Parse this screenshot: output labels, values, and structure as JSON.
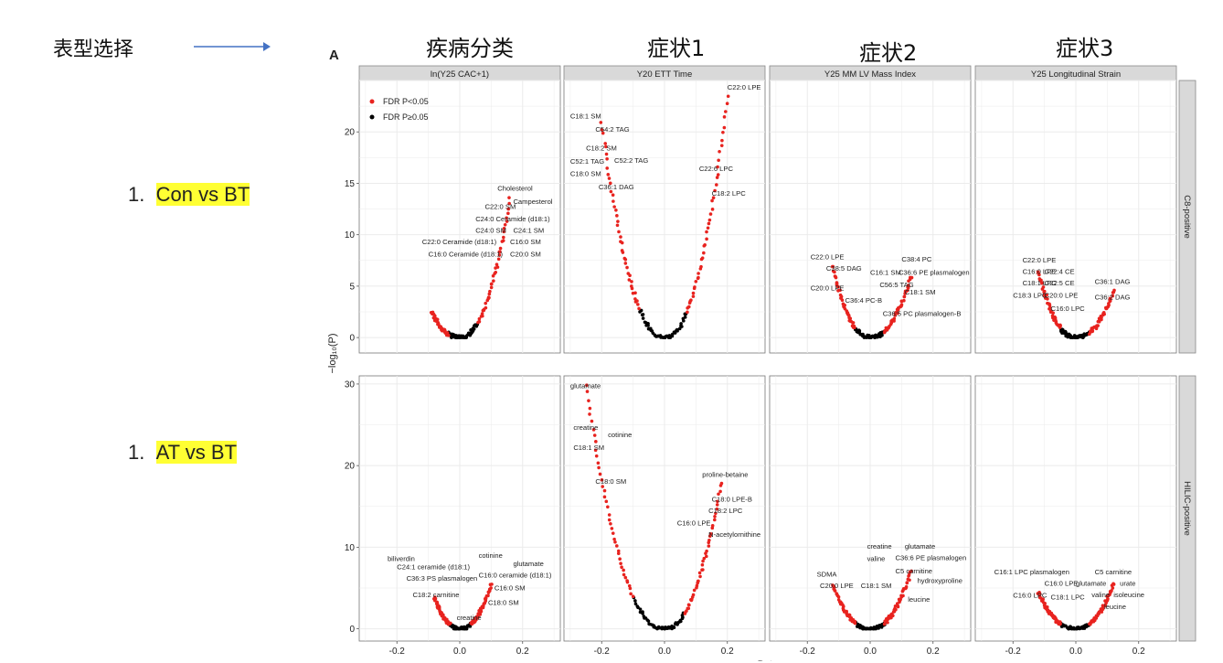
{
  "annotations": {
    "phenotype_selection": "表型选择",
    "rows": [
      {
        "num": "1.",
        "label": "Con vs BT"
      },
      {
        "num": "1.",
        "label": "AT vs BT"
      }
    ],
    "column_headers": [
      "疾病分类",
      "症状1",
      "症状2",
      "症状3"
    ]
  },
  "chart_data": {
    "type": "scatter",
    "panel_letter": "A",
    "xlabel": "Beta",
    "ylabel": "−log₁₀(P)",
    "x_ticks": [
      "-0.2",
      "0.0",
      "0.2"
    ],
    "xlim": [
      -0.32,
      0.32
    ],
    "facet_columns": [
      "ln(Y25 CAC+1)",
      "Y20 ETT Time",
      "Y25 MM LV Mass Index",
      "Y25 Longitudinal Strain"
    ],
    "facet_rows": [
      "C8-positive",
      "HILIC-positive"
    ],
    "row_ylims": [
      [
        -1.5,
        25
      ],
      [
        -1.5,
        31
      ]
    ],
    "row_yticks": [
      [
        "0",
        "5",
        "10",
        "15",
        "20"
      ],
      [
        "0",
        "10",
        "20",
        "30"
      ]
    ],
    "legend": [
      {
        "label": "FDR P<0.05",
        "color": "#e8231f"
      },
      {
        "label": "FDR P≥0.05",
        "color": "#000000"
      }
    ],
    "colors": {
      "sig": "#e8231f",
      "ns": "#000000",
      "strip": "#d9d9d9",
      "grid": "#ebebeb"
    },
    "panels": [
      {
        "row": 0,
        "col": 0,
        "curve": {
          "left_x": -0.09,
          "right_x": 0.16,
          "left_max": 2.5,
          "right_max": 13.5
        },
        "labels": [
          {
            "text": "Cholesterol",
            "x": 0.12,
            "y": 14.3
          },
          {
            "text": "Campesterol",
            "x": 0.17,
            "y": 13.0
          },
          {
            "text": "C22:0 SM",
            "x": 0.08,
            "y": 12.5
          },
          {
            "text": "C24:0 Ceramide (d18:1)",
            "x": 0.05,
            "y": 11.3
          },
          {
            "text": "C24:0 SM",
            "x": 0.05,
            "y": 10.2
          },
          {
            "text": "C24:1 SM",
            "x": 0.17,
            "y": 10.2
          },
          {
            "text": "C22:0 Ceramide (d18:1)",
            "x": -0.12,
            "y": 9.1
          },
          {
            "text": "C16:0 SM",
            "x": 0.16,
            "y": 9.1
          },
          {
            "text": "C16:0 Ceramide (d18:1)",
            "x": -0.1,
            "y": 7.9
          },
          {
            "text": "C20:0 SM",
            "x": 0.16,
            "y": 7.9
          }
        ]
      },
      {
        "row": 0,
        "col": 1,
        "curve": {
          "left_x": -0.2,
          "right_x": 0.2,
          "left_max": 21,
          "right_max": 23.5
        },
        "labels": [
          {
            "text": "C22:0 LPE",
            "x": 0.2,
            "y": 24.1
          },
          {
            "text": "C18:1 SM",
            "x": -0.3,
            "y": 21.3
          },
          {
            "text": "C54:2 TAG",
            "x": -0.22,
            "y": 20.0
          },
          {
            "text": "C18:2 SM",
            "x": -0.25,
            "y": 18.2
          },
          {
            "text": "C52:1 TAG",
            "x": -0.3,
            "y": 16.9
          },
          {
            "text": "C52:2 TAG",
            "x": -0.16,
            "y": 17.0
          },
          {
            "text": "C18:0 SM",
            "x": -0.3,
            "y": 15.7
          },
          {
            "text": "C22:6 LPC",
            "x": 0.11,
            "y": 16.2
          },
          {
            "text": "C36:1 DAG",
            "x": -0.21,
            "y": 14.4
          },
          {
            "text": "C18:2 LPC",
            "x": 0.15,
            "y": 13.8
          }
        ]
      },
      {
        "row": 0,
        "col": 2,
        "curve": {
          "left_x": -0.12,
          "right_x": 0.13,
          "left_max": 7,
          "right_max": 6
        },
        "labels": [
          {
            "text": "C22:0 LPE",
            "x": -0.19,
            "y": 7.6
          },
          {
            "text": "C38:4 PC",
            "x": 0.1,
            "y": 7.4
          },
          {
            "text": "C38:5 DAG",
            "x": -0.14,
            "y": 6.5
          },
          {
            "text": "C16:1 SM",
            "x": 0.0,
            "y": 6.1
          },
          {
            "text": "C36:6 PE plasmalogen",
            "x": 0.09,
            "y": 6.1
          },
          {
            "text": "C56:5 TAG",
            "x": 0.03,
            "y": 4.9
          },
          {
            "text": "C20:0 LPE",
            "x": -0.19,
            "y": 4.6
          },
          {
            "text": "C18:1 SM",
            "x": 0.11,
            "y": 4.2
          },
          {
            "text": "C36:4 PC-B",
            "x": -0.08,
            "y": 3.4
          },
          {
            "text": "C36:5 PC plasmalogen-B",
            "x": 0.04,
            "y": 2.1
          }
        ]
      },
      {
        "row": 0,
        "col": 3,
        "curve": {
          "left_x": -0.12,
          "right_x": 0.12,
          "left_max": 6.5,
          "right_max": 4.5
        },
        "labels": [
          {
            "text": "C22:0 LPE",
            "x": -0.17,
            "y": 7.3
          },
          {
            "text": "C16:0 LPE",
            "x": -0.17,
            "y": 6.2
          },
          {
            "text": "C22:4 CE",
            "x": -0.1,
            "y": 6.2
          },
          {
            "text": "C18:1 LPC",
            "x": -0.17,
            "y": 5.1
          },
          {
            "text": "C22:5 CE",
            "x": -0.1,
            "y": 5.1
          },
          {
            "text": "C36:1 DAG",
            "x": 0.06,
            "y": 5.2
          },
          {
            "text": "C18:3 LPC",
            "x": -0.2,
            "y": 3.9
          },
          {
            "text": "C20:0 LPE",
            "x": -0.1,
            "y": 3.9
          },
          {
            "text": "C36:2 DAG",
            "x": 0.06,
            "y": 3.7
          },
          {
            "text": "C16:0 LPC",
            "x": -0.08,
            "y": 2.6
          }
        ]
      },
      {
        "row": 1,
        "col": 0,
        "curve": {
          "left_x": -0.08,
          "right_x": 0.1,
          "left_max": 3.8,
          "right_max": 5.5
        },
        "labels": [
          {
            "text": "biliverdin",
            "x": -0.23,
            "y": 8.3
          },
          {
            "text": "cotinine",
            "x": 0.06,
            "y": 8.7
          },
          {
            "text": "C24:1 ceramide (d18:1)",
            "x": -0.2,
            "y": 7.3
          },
          {
            "text": "glutamate",
            "x": 0.17,
            "y": 7.7
          },
          {
            "text": "C16:0 ceramide (d18:1)",
            "x": 0.06,
            "y": 6.3
          },
          {
            "text": "C36:3 PS plasmalogen",
            "x": -0.17,
            "y": 5.9
          },
          {
            "text": "C16:0 SM",
            "x": 0.11,
            "y": 4.7
          },
          {
            "text": "C18:2 carnitine",
            "x": -0.15,
            "y": 3.9
          },
          {
            "text": "C18:0 SM",
            "x": 0.09,
            "y": 2.9
          },
          {
            "text": "creatine",
            "x": -0.01,
            "y": 1.1
          }
        ]
      },
      {
        "row": 1,
        "col": 1,
        "curve": {
          "left_x": -0.25,
          "right_x": 0.18,
          "left_max": 30,
          "right_max": 18
        },
        "labels": [
          {
            "text": "glutamate",
            "x": -0.3,
            "y": 29.5
          },
          {
            "text": "creatine",
            "x": -0.29,
            "y": 24.4
          },
          {
            "text": "cotinine",
            "x": -0.18,
            "y": 23.5
          },
          {
            "text": "C18:1 SM",
            "x": -0.29,
            "y": 21.9
          },
          {
            "text": "C18:0 SM",
            "x": -0.22,
            "y": 17.8
          },
          {
            "text": "proline-betaine",
            "x": 0.12,
            "y": 18.6
          },
          {
            "text": "C18:0 LPE-B",
            "x": 0.15,
            "y": 15.6
          },
          {
            "text": "C18:2 LPC",
            "x": 0.14,
            "y": 14.2
          },
          {
            "text": "C16:0 LPE",
            "x": 0.04,
            "y": 12.7
          },
          {
            "text": "N-acetylornithine",
            "x": 0.14,
            "y": 11.3
          }
        ]
      },
      {
        "row": 1,
        "col": 2,
        "curve": {
          "left_x": -0.12,
          "right_x": 0.13,
          "left_max": 5.5,
          "right_max": 7
        },
        "labels": [
          {
            "text": "creatine",
            "x": -0.01,
            "y": 9.8
          },
          {
            "text": "glutamate",
            "x": 0.11,
            "y": 9.8
          },
          {
            "text": "C36:6 PE plasmalogen",
            "x": 0.08,
            "y": 8.4
          },
          {
            "text": "valine",
            "x": -0.01,
            "y": 8.3
          },
          {
            "text": "C5 carnitine",
            "x": 0.08,
            "y": 6.8
          },
          {
            "text": "SDMA",
            "x": -0.17,
            "y": 6.4
          },
          {
            "text": "hydroxyproline",
            "x": 0.15,
            "y": 5.6
          },
          {
            "text": "C20:0 LPE",
            "x": -0.16,
            "y": 5.0
          },
          {
            "text": "C18:1 SM",
            "x": -0.03,
            "y": 5.0
          },
          {
            "text": "leucine",
            "x": 0.12,
            "y": 3.3
          }
        ]
      },
      {
        "row": 1,
        "col": 3,
        "curve": {
          "left_x": -0.12,
          "right_x": 0.12,
          "left_max": 4.5,
          "right_max": 5.5
        },
        "labels": [
          {
            "text": "C16:1 LPC plasmalogen",
            "x": -0.26,
            "y": 6.7
          },
          {
            "text": "C5 carnitine",
            "x": 0.06,
            "y": 6.7
          },
          {
            "text": "C16:0 LPE",
            "x": -0.1,
            "y": 5.3
          },
          {
            "text": "glutamate",
            "x": 0.0,
            "y": 5.3
          },
          {
            "text": "urate",
            "x": 0.14,
            "y": 5.3
          },
          {
            "text": "C16:0 LPC",
            "x": -0.2,
            "y": 3.8
          },
          {
            "text": "C18:1 LPC",
            "x": -0.08,
            "y": 3.6
          },
          {
            "text": "valine",
            "x": 0.05,
            "y": 3.9
          },
          {
            "text": "isoleucine",
            "x": 0.12,
            "y": 3.9
          },
          {
            "text": "leucine",
            "x": 0.09,
            "y": 2.4
          }
        ]
      }
    ]
  }
}
